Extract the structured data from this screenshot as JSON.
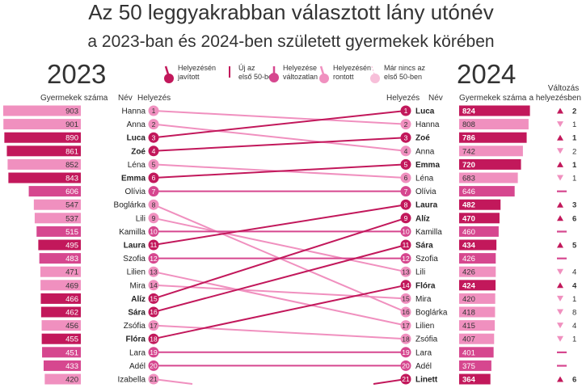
{
  "title": "Az 50 leggyakrabban választott lány utónév",
  "subtitle": "a 2023-ban és 2024-ben született gyermekek körében",
  "legend": [
    {
      "key": "improved",
      "text": "Helyezésén javított"
    },
    {
      "key": "new",
      "text": "Új az első 50-ben"
    },
    {
      "key": "same",
      "text": "Helyezése változatlan"
    },
    {
      "key": "worse",
      "text": "Helyezésén rontott"
    },
    {
      "key": "dropped",
      "text": "Már nincs az első 50-ben"
    }
  ],
  "headers": {
    "year_left": "2023",
    "year_right": "2024",
    "count_left": "Gyermekek száma",
    "count_right": "Gyermekek száma",
    "name": "Név",
    "rank": "Helyezés",
    "change": "Változás a helyezésben"
  },
  "colors": {
    "improved": "#c2185b",
    "new": "#c2185b",
    "same": "#d6478f",
    "worse": "#f090bf",
    "dropped": "#f7bfd9"
  },
  "chart_data": {
    "type": "slope",
    "left": [
      {
        "rank": 1,
        "name": "Hanna",
        "count": 903,
        "status": "worse"
      },
      {
        "rank": 2,
        "name": "Anna",
        "count": 901,
        "status": "worse"
      },
      {
        "rank": 3,
        "name": "Luca",
        "count": 890,
        "status": "improved"
      },
      {
        "rank": 4,
        "name": "Zoé",
        "count": 861,
        "status": "improved"
      },
      {
        "rank": 5,
        "name": "Léna",
        "count": 852,
        "status": "worse"
      },
      {
        "rank": 6,
        "name": "Emma",
        "count": 843,
        "status": "improved"
      },
      {
        "rank": 7,
        "name": "Olívia",
        "count": 606,
        "status": "same"
      },
      {
        "rank": 8,
        "name": "Boglárka",
        "count": 547,
        "status": "worse"
      },
      {
        "rank": 9,
        "name": "Lili",
        "count": 537,
        "status": "worse"
      },
      {
        "rank": 10,
        "name": "Kamilla",
        "count": 515,
        "status": "same"
      },
      {
        "rank": 11,
        "name": "Laura",
        "count": 495,
        "status": "improved"
      },
      {
        "rank": 12,
        "name": "Szofia",
        "count": 483,
        "status": "same"
      },
      {
        "rank": 13,
        "name": "Lilien",
        "count": 471,
        "status": "worse"
      },
      {
        "rank": 14,
        "name": "Mira",
        "count": 469,
        "status": "worse"
      },
      {
        "rank": 15,
        "name": "Alíz",
        "count": 466,
        "status": "improved"
      },
      {
        "rank": 16,
        "name": "Sára",
        "count": 462,
        "status": "improved"
      },
      {
        "rank": 17,
        "name": "Zsófia",
        "count": 456,
        "status": "worse"
      },
      {
        "rank": 18,
        "name": "Flóra",
        "count": 455,
        "status": "improved"
      },
      {
        "rank": 19,
        "name": "Lara",
        "count": 451,
        "status": "same"
      },
      {
        "rank": 20,
        "name": "Adél",
        "count": 433,
        "status": "same"
      },
      {
        "rank": 21,
        "name": "Izabella",
        "count": 420,
        "status": "worse"
      }
    ],
    "right": [
      {
        "rank": 1,
        "name": "Luca",
        "count": 824,
        "status": "improved",
        "change_dir": "up",
        "change": "2",
        "from": 3
      },
      {
        "rank": 2,
        "name": "Hanna",
        "count": 808,
        "status": "worse",
        "change_dir": "down",
        "change": "1",
        "from": 1
      },
      {
        "rank": 3,
        "name": "Zoé",
        "count": 786,
        "status": "improved",
        "change_dir": "up",
        "change": "1",
        "from": 4
      },
      {
        "rank": 4,
        "name": "Anna",
        "count": 742,
        "status": "worse",
        "change_dir": "down",
        "change": "2",
        "from": 2
      },
      {
        "rank": 5,
        "name": "Emma",
        "count": 720,
        "status": "improved",
        "change_dir": "up",
        "change": "1",
        "from": 6
      },
      {
        "rank": 6,
        "name": "Léna",
        "count": 683,
        "status": "worse",
        "change_dir": "down",
        "change": "1",
        "from": 5
      },
      {
        "rank": 7,
        "name": "Olívia",
        "count": 646,
        "status": "same",
        "change_dir": "same",
        "change": "",
        "from": 7
      },
      {
        "rank": 8,
        "name": "Laura",
        "count": 482,
        "status": "improved",
        "change_dir": "up",
        "change": "3",
        "from": 11
      },
      {
        "rank": 9,
        "name": "Alíz",
        "count": 470,
        "status": "improved",
        "change_dir": "up",
        "change": "6",
        "from": 15
      },
      {
        "rank": 10,
        "name": "Kamilla",
        "count": 460,
        "status": "same",
        "change_dir": "same",
        "change": "",
        "from": 10
      },
      {
        "rank": 11,
        "name": "Sára",
        "count": 434,
        "status": "improved",
        "change_dir": "up",
        "change": "5",
        "from": 16
      },
      {
        "rank": 12,
        "name": "Szofia",
        "count": 426,
        "status": "same",
        "change_dir": "same",
        "change": "",
        "from": 12
      },
      {
        "rank": 13,
        "name": "Lili",
        "count": 426,
        "status": "worse",
        "change_dir": "down",
        "change": "4",
        "from": 9
      },
      {
        "rank": 14,
        "name": "Flóra",
        "count": 424,
        "status": "improved",
        "change_dir": "up",
        "change": "4",
        "from": 18
      },
      {
        "rank": 15,
        "name": "Mira",
        "count": 420,
        "status": "worse",
        "change_dir": "down",
        "change": "1",
        "from": 14
      },
      {
        "rank": 16,
        "name": "Boglárka",
        "count": 418,
        "status": "worse",
        "change_dir": "down",
        "change": "8",
        "from": 8
      },
      {
        "rank": 17,
        "name": "Lilien",
        "count": 415,
        "status": "worse",
        "change_dir": "down",
        "change": "4",
        "from": 13
      },
      {
        "rank": 18,
        "name": "Zsófia",
        "count": 407,
        "status": "worse",
        "change_dir": "down",
        "change": "1",
        "from": 17
      },
      {
        "rank": 19,
        "name": "Lara",
        "count": 401,
        "status": "same",
        "change_dir": "same",
        "change": "",
        "from": 19
      },
      {
        "rank": 20,
        "name": "Adél",
        "count": 375,
        "status": "same",
        "change_dir": "same",
        "change": "",
        "from": 20
      },
      {
        "rank": 21,
        "name": "Linett",
        "count": 364,
        "status": "improved",
        "change_dir": "up",
        "change": "6",
        "from": 27
      }
    ]
  }
}
